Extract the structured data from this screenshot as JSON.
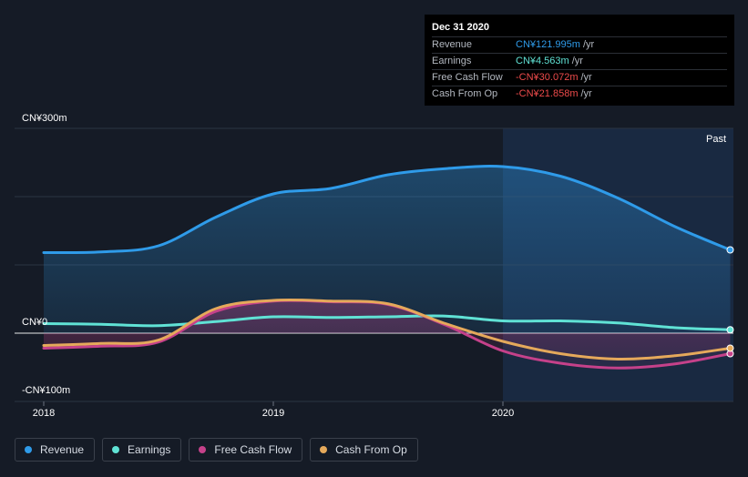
{
  "tooltip": {
    "date": "Dec 31 2020",
    "rows": [
      {
        "label": "Revenue",
        "value": "CN¥121.995m",
        "unit": "/yr",
        "color": "#2f9be9"
      },
      {
        "label": "Earnings",
        "value": "CN¥4.563m",
        "unit": "/yr",
        "color": "#60e2d5"
      },
      {
        "label": "Free Cash Flow",
        "value": "-CN¥30.072m",
        "unit": "/yr",
        "color": "#ee4b4b"
      },
      {
        "label": "Cash From Op",
        "value": "-CN¥21.858m",
        "unit": "/yr",
        "color": "#ee4b4b"
      }
    ]
  },
  "legend": [
    {
      "label": "Revenue",
      "color": "#2f9be9"
    },
    {
      "label": "Earnings",
      "color": "#60e2d5"
    },
    {
      "label": "Free Cash Flow",
      "color": "#c5418a"
    },
    {
      "label": "Cash From Op",
      "color": "#e5a95b"
    }
  ],
  "chart_data": {
    "type": "line",
    "y_labels": [
      "CN¥300m",
      "CN¥0",
      "-CN¥100m"
    ],
    "ylim": [
      -100,
      300
    ],
    "x_ticks": [
      {
        "label": "2018",
        "x": 2018.0
      },
      {
        "label": "2019",
        "x": 2019.0
      },
      {
        "label": "2020",
        "x": 2020.0
      }
    ],
    "xlim": [
      2017.87,
      2020.99
    ],
    "past_label": "Past",
    "past_start": 2020.0,
    "grid": true,
    "series": [
      {
        "name": "Revenue",
        "color": "#2f9be9",
        "fill": true,
        "points": [
          [
            2018.0,
            118
          ],
          [
            2018.25,
            119
          ],
          [
            2018.5,
            128
          ],
          [
            2018.75,
            170
          ],
          [
            2019.0,
            204
          ],
          [
            2019.25,
            212
          ],
          [
            2019.5,
            232
          ],
          [
            2019.75,
            241
          ],
          [
            2020.0,
            244
          ],
          [
            2020.25,
            230
          ],
          [
            2020.5,
            198
          ],
          [
            2020.75,
            156
          ],
          [
            2020.99,
            122
          ]
        ]
      },
      {
        "name": "Earnings",
        "color": "#60e2d5",
        "fill": false,
        "points": [
          [
            2018.0,
            14
          ],
          [
            2018.25,
            13
          ],
          [
            2018.5,
            11
          ],
          [
            2018.75,
            17
          ],
          [
            2019.0,
            24
          ],
          [
            2019.25,
            23
          ],
          [
            2019.5,
            24
          ],
          [
            2019.75,
            25
          ],
          [
            2020.0,
            18
          ],
          [
            2020.25,
            18
          ],
          [
            2020.5,
            15
          ],
          [
            2020.75,
            8
          ],
          [
            2020.99,
            5
          ]
        ]
      },
      {
        "name": "Free Cash Flow",
        "color": "#c5418a",
        "fill": true,
        "points": [
          [
            2018.0,
            -22
          ],
          [
            2018.25,
            -19
          ],
          [
            2018.5,
            -13
          ],
          [
            2018.75,
            32
          ],
          [
            2019.0,
            47
          ],
          [
            2019.25,
            46
          ],
          [
            2019.5,
            42
          ],
          [
            2019.75,
            12
          ],
          [
            2020.0,
            -26
          ],
          [
            2020.25,
            -44
          ],
          [
            2020.5,
            -51
          ],
          [
            2020.75,
            -45
          ],
          [
            2020.99,
            -30
          ]
        ]
      },
      {
        "name": "Cash From Op",
        "color": "#e5a95b",
        "fill": true,
        "points": [
          [
            2018.0,
            -18
          ],
          [
            2018.25,
            -15
          ],
          [
            2018.5,
            -10
          ],
          [
            2018.75,
            36
          ],
          [
            2019.0,
            48
          ],
          [
            2019.25,
            47
          ],
          [
            2019.5,
            43
          ],
          [
            2019.75,
            14
          ],
          [
            2020.0,
            -12
          ],
          [
            2020.25,
            -30
          ],
          [
            2020.5,
            -38
          ],
          [
            2020.75,
            -33
          ],
          [
            2020.99,
            -22
          ]
        ]
      }
    ]
  }
}
